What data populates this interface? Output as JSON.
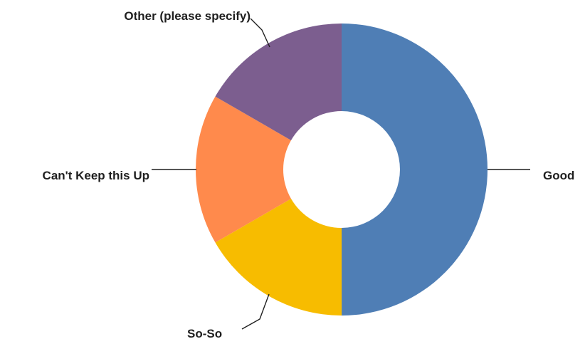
{
  "chart_data": {
    "type": "pie",
    "donut": true,
    "categories": [
      "Good",
      "So-So",
      "Can't Keep this Up",
      "Other (please specify)"
    ],
    "values": [
      50,
      16.67,
      16.67,
      16.67
    ],
    "colors": [
      "#4f7eb5",
      "#f7bc00",
      "#ff8a4c",
      "#7c5e8f"
    ],
    "title": "",
    "legend": "none"
  }
}
